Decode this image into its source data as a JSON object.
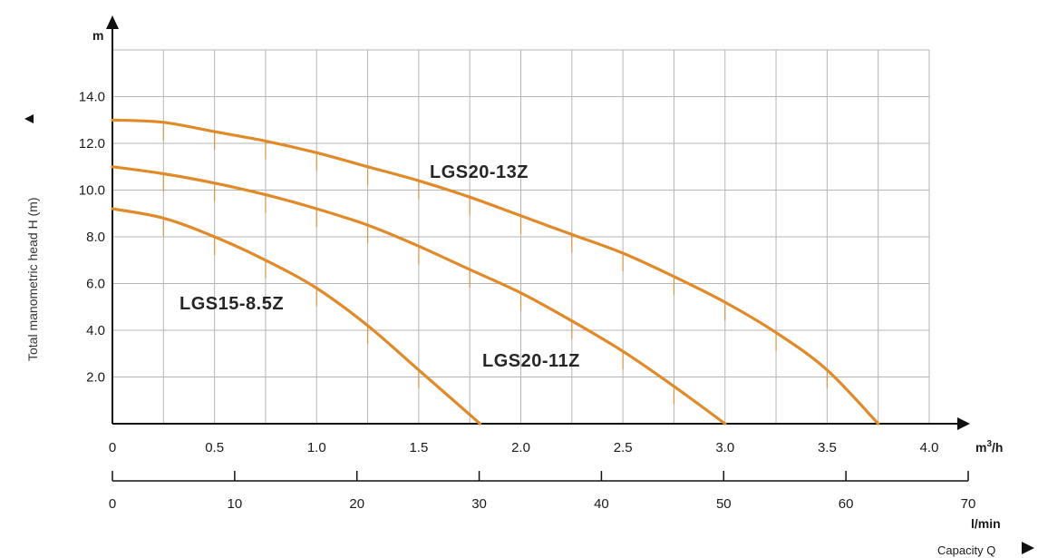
{
  "chart_data": {
    "type": "line",
    "ylabel": "Total manometric head H (m)",
    "y_unit": "m",
    "x_unit_primary": "m³/h",
    "x_unit_secondary": "l/min",
    "x_axis_title": "Capacity Q",
    "xlim": [
      0,
      4.0
    ],
    "ylim": [
      0,
      16
    ],
    "x_ticks": [
      "0",
      "0.5",
      "1.0",
      "1.5",
      "2.0",
      "2.5",
      "3.0",
      "3.5",
      "4.0"
    ],
    "y_ticks": [
      "2.0",
      "4.0",
      "6.0",
      "8.0",
      "10.0",
      "12.0",
      "14.0"
    ],
    "x2_lim": [
      0,
      70
    ],
    "x2_ticks": [
      "0",
      "10",
      "20",
      "30",
      "40",
      "50",
      "60",
      "70"
    ],
    "grid": true,
    "series_color": "#e08a2a",
    "series": [
      {
        "name": "LGS20-13Z",
        "points": [
          [
            0,
            13.0
          ],
          [
            0.25,
            12.9
          ],
          [
            0.5,
            12.5
          ],
          [
            0.75,
            12.1
          ],
          [
            1.0,
            11.6
          ],
          [
            1.25,
            11.0
          ],
          [
            1.5,
            10.4
          ],
          [
            1.75,
            9.7
          ],
          [
            2.0,
            8.9
          ],
          [
            2.25,
            8.1
          ],
          [
            2.5,
            7.3
          ],
          [
            2.75,
            6.3
          ],
          [
            3.0,
            5.2
          ],
          [
            3.25,
            3.9
          ],
          [
            3.5,
            2.3
          ],
          [
            3.75,
            0
          ]
        ]
      },
      {
        "name": "LGS20-11Z",
        "points": [
          [
            0,
            11.0
          ],
          [
            0.25,
            10.7
          ],
          [
            0.5,
            10.3
          ],
          [
            0.75,
            9.8
          ],
          [
            1.0,
            9.2
          ],
          [
            1.25,
            8.5
          ],
          [
            1.5,
            7.6
          ],
          [
            1.75,
            6.6
          ],
          [
            2.0,
            5.6
          ],
          [
            2.25,
            4.4
          ],
          [
            2.5,
            3.1
          ],
          [
            2.75,
            1.6
          ],
          [
            3.0,
            0
          ]
        ]
      },
      {
        "name": "LGS15-8.5Z",
        "points": [
          [
            0,
            9.2
          ],
          [
            0.25,
            8.8
          ],
          [
            0.5,
            8.0
          ],
          [
            0.75,
            7.0
          ],
          [
            1.0,
            5.8
          ],
          [
            1.25,
            4.2
          ],
          [
            1.5,
            2.3
          ],
          [
            1.8,
            0
          ]
        ]
      }
    ]
  }
}
